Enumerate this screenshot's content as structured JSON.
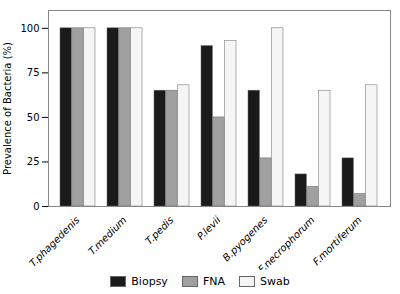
{
  "chart_data": {
    "type": "bar",
    "categories": [
      "T.phagedenis",
      "T.medium",
      "T.pedis",
      "P.levii",
      "B.pyogenes",
      "F.necrophorum",
      "F.mortiferum"
    ],
    "series": [
      {
        "name": "Biopsy",
        "color": "#1a1a1a",
        "values": [
          100,
          100,
          65,
          90,
          65,
          18,
          27
        ]
      },
      {
        "name": "FNA",
        "color": "#a0a0a0",
        "values": [
          100,
          100,
          65,
          50,
          27,
          11,
          7
        ]
      },
      {
        "name": "Swab",
        "color": "#f5f5f5",
        "values": [
          100,
          100,
          68,
          93,
          100,
          65,
          68
        ]
      }
    ],
    "ylabel": "Prevalence of Bacteria (%)",
    "ylim": [
      0,
      110
    ],
    "yticks": [
      0,
      25,
      50,
      75,
      100
    ],
    "grid": false,
    "legend": "bottom"
  }
}
